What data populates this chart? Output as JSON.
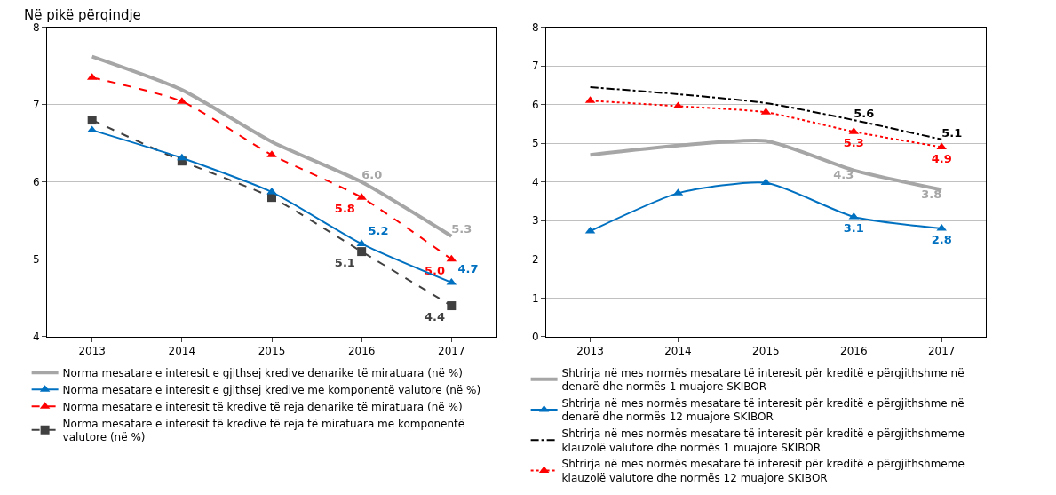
{
  "chart_data": [
    {
      "type": "line",
      "title": "Në pikë përqindje",
      "categories": [
        "2013",
        "2014",
        "2015",
        "2016",
        "2017"
      ],
      "ylim": [
        4,
        8
      ],
      "yticks": [
        4,
        5,
        6,
        7,
        8
      ],
      "grid": "y",
      "legend": "bottom",
      "series": [
        {
          "name": "Norma mesatare e interesit e gjithsej kredive denarike të miratuara (në %)",
          "color": "#a6a6a6",
          "marker": "none",
          "line_style": "solid",
          "values": [
            7.62,
            7.19,
            6.52,
            6.0,
            5.3
          ],
          "value_labels": [
            null,
            null,
            null,
            "6.0",
            "5.3"
          ]
        },
        {
          "name": "Norma mesatare e interesit e gjithsej kredive me komponentë valutore (në %)",
          "color": "#0070c0",
          "marker": "triangle",
          "line_style": "solid",
          "values": [
            6.67,
            6.31,
            5.87,
            5.2,
            4.7
          ],
          "value_labels": [
            null,
            null,
            null,
            "5.2",
            "4.7"
          ]
        },
        {
          "name": "Norma mesatare e interesit të kredive të reja denarike të miratuara (në %)",
          "color": "#ff0000",
          "marker": "triangle",
          "line_style": "dashed",
          "values": [
            7.35,
            7.04,
            6.35,
            5.8,
            5.0
          ],
          "value_labels": [
            null,
            null,
            null,
            "5.8",
            "5.0"
          ]
        },
        {
          "name": "Norma mesatare e interesit të kredive të reja të miratuara me komponentë valutore (në %)",
          "color": "#404040",
          "marker": "square",
          "line_style": "dashed",
          "values": [
            6.8,
            6.27,
            5.8,
            5.1,
            4.4
          ],
          "value_labels": [
            null,
            null,
            null,
            "5.1",
            "4.4"
          ]
        }
      ]
    },
    {
      "type": "line",
      "categories": [
        "2013",
        "2014",
        "2015",
        "2016",
        "2017"
      ],
      "ylim": [
        0,
        8
      ],
      "yticks": [
        0,
        1,
        2,
        3,
        4,
        5,
        6,
        7,
        8
      ],
      "grid": "y",
      "legend": "bottom",
      "series": [
        {
          "name": "Shtrirja në mes normës mesatare të interesit për kreditë e përgjithshme në denarë dhe normës 1 muajore SKIBOR",
          "color": "#a6a6a6",
          "marker": "none",
          "line_style": "solid",
          "values": [
            4.7,
            4.94,
            5.06,
            4.3,
            3.8
          ],
          "value_labels": [
            null,
            null,
            null,
            "4.3",
            "3.8"
          ]
        },
        {
          "name": "Shtrirja në mes normës mesatare të interesit për kreditë e përgjithshme në denarë dhe normës 12 muajore SKIBOR",
          "color": "#0070c0",
          "marker": "triangle",
          "line_style": "solid",
          "values": [
            2.73,
            3.71,
            3.98,
            3.1,
            2.8
          ],
          "value_labels": [
            null,
            null,
            null,
            "3.1",
            "2.8"
          ]
        },
        {
          "name": "Shtrirja në mes normës mesatare të interesit për kreditë e përgjithshmeme klauzolë valutore dhe normës 1 muajore SKIBOR",
          "color": "#000000",
          "marker": "none",
          "line_style": "dashdot",
          "values": [
            6.45,
            6.27,
            6.04,
            5.6,
            5.1
          ],
          "value_labels": [
            null,
            null,
            null,
            "5.6",
            "5.1"
          ]
        },
        {
          "name": "Shtrirja në mes normës mesatare të interesit për kreditë e përgjithshmeme klauzolë valutore dhe normës 12 muajore SKIBOR",
          "color": "#ff0000",
          "marker": "triangle",
          "line_style": "dotted",
          "values": [
            6.1,
            5.96,
            5.8,
            5.3,
            4.9
          ],
          "value_labels": [
            null,
            null,
            null,
            "5.3",
            "4.9"
          ]
        }
      ]
    }
  ]
}
